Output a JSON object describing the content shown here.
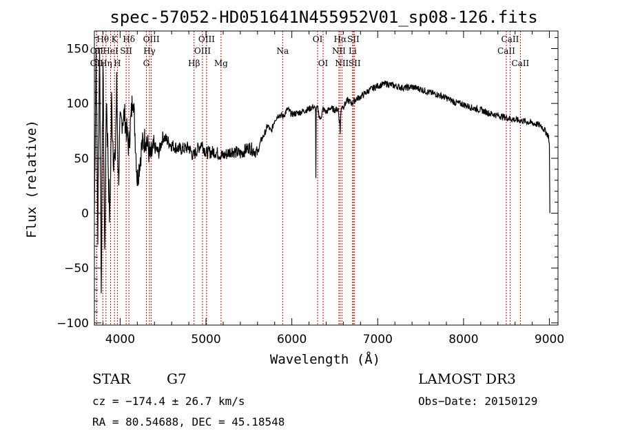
{
  "chart_data": {
    "type": "line",
    "title": "spec-57052-HD051641N455952V01_sp08-126.fits",
    "xlabel": "Wavelength (Å)",
    "ylabel": "Flux (relative)",
    "xlim": [
      3700,
      9100
    ],
    "ylim": [
      -102,
      166
    ],
    "x_ticks": [
      4000,
      5000,
      6000,
      7000,
      8000,
      9000
    ],
    "y_ticks": [
      -100,
      -50,
      0,
      50,
      100,
      150
    ],
    "grid": false,
    "line_color": "#000000",
    "marker_color": "#cc0000",
    "series": [
      {
        "name": "spectrum",
        "x": [
          3700,
          3720,
          3740,
          3760,
          3780,
          3800,
          3820,
          3840,
          3860,
          3880,
          3900,
          3920,
          3940,
          3960,
          3980,
          4000,
          4050,
          4100,
          4150,
          4200,
          4250,
          4300,
          4350,
          4400,
          4450,
          4500,
          4600,
          4700,
          4800,
          4850,
          4900,
          4950,
          5000,
          5100,
          5200,
          5300,
          5400,
          5500,
          5600,
          5640,
          5680,
          5720,
          5760,
          5800,
          5850,
          5900,
          5950,
          6000,
          6100,
          6200,
          6250,
          6280,
          6300,
          6330,
          6364,
          6400,
          6450,
          6500,
          6540,
          6560,
          6580,
          6600,
          6650,
          6700,
          6750,
          6800,
          6900,
          7000,
          7100,
          7200,
          7300,
          7400,
          7500,
          7600,
          7700,
          7800,
          7900,
          8000,
          8100,
          8200,
          8300,
          8400,
          8500,
          8600,
          8700,
          8800,
          8900,
          8950,
          8990,
          9000,
          9005
        ],
        "y": [
          0,
          150,
          -20,
          160,
          -60,
          140,
          -40,
          110,
          50,
          -10,
          100,
          60,
          40,
          115,
          30,
          80,
          90,
          60,
          110,
          30,
          60,
          70,
          50,
          60,
          55,
          70,
          62,
          58,
          60,
          52,
          58,
          64,
          55,
          56,
          52,
          57,
          54,
          60,
          55,
          66,
          72,
          80,
          74,
          85,
          90,
          88,
          95,
          90,
          92,
          95,
          97,
          94,
          96,
          85,
          95,
          92,
          96,
          94,
          95,
          80,
          98,
          97,
          103,
          100,
          104,
          106,
          112,
          116,
          118,
          116,
          114,
          115,
          113,
          110,
          108,
          105,
          101,
          99,
          96,
          94,
          91,
          89,
          87,
          85,
          84,
          82,
          80,
          75,
          70,
          62,
          0
        ]
      }
    ],
    "spectral_lines": [
      {
        "label": "OII",
        "x": 3727,
        "row": 2
      },
      {
        "label": "Hθ",
        "x": 3798,
        "row": 0
      },
      {
        "label": "OII",
        "x": 3727,
        "row": 1
      },
      {
        "label": "Hη",
        "x": 3835,
        "row": 2
      },
      {
        "label": "HeI",
        "x": 3889,
        "row": 1
      },
      {
        "label": "K",
        "x": 3934,
        "row": 0
      },
      {
        "label": "H",
        "x": 3968,
        "row": 2
      },
      {
        "label": "SII",
        "x": 4070,
        "row": 1
      },
      {
        "label": "Hδ",
        "x": 4102,
        "row": 0
      },
      {
        "label": "G",
        "x": 4305,
        "row": 2
      },
      {
        "label": "Hγ",
        "x": 4341,
        "row": 1
      },
      {
        "label": "OIII",
        "x": 4363,
        "row": 0
      },
      {
        "label": "Hβ",
        "x": 4861,
        "row": 2
      },
      {
        "label": "OIII",
        "x": 4959,
        "row": 1
      },
      {
        "label": "OIII",
        "x": 5007,
        "row": 0
      },
      {
        "label": "Mg",
        "x": 5175,
        "row": 2
      },
      {
        "label": "Na",
        "x": 5893,
        "row": 1
      },
      {
        "label": "OI",
        "x": 6300,
        "row": 0
      },
      {
        "label": "OI",
        "x": 6364,
        "row": 2
      },
      {
        "label": "NII",
        "x": 6548,
        "row": 1
      },
      {
        "label": "Hα",
        "x": 6563,
        "row": 0
      },
      {
        "label": "NII",
        "x": 6583,
        "row": 2
      },
      {
        "label": "SII",
        "x": 6716,
        "row": 0
      },
      {
        "label": "Li",
        "x": 6708,
        "row": 1
      },
      {
        "label": "SII",
        "x": 6731,
        "row": 2
      },
      {
        "label": "CaII",
        "x": 8498,
        "row": 1
      },
      {
        "label": "CaII",
        "x": 8542,
        "row": 0
      },
      {
        "label": "CaII",
        "x": 8662,
        "row": 2
      }
    ]
  },
  "info": {
    "object_class": "STAR",
    "subclass": "G7",
    "survey": "LAMOST DR3",
    "redshift": "cz = −174.4 ± 26.7 km/s",
    "obs_date": "Obs−Date: 20150129",
    "coords": "RA =  80.54688, DEC =  45.18548"
  }
}
